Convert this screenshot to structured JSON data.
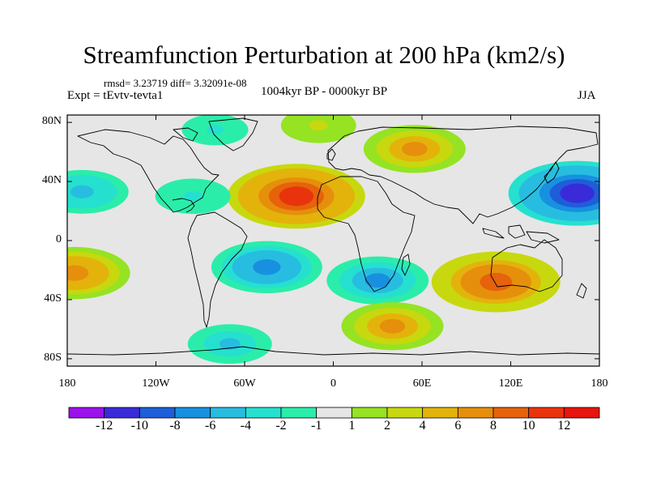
{
  "title": "Streamfunction Perturbation at 200 hPa (km2/s)",
  "stats_line": "rmsd= 3.23719 diff= 3.32091e-08",
  "experiment": "Expt = tEvtv-tevta1",
  "period": "1004kyr BP - 0000kyr BP",
  "season": "JJA",
  "map": {
    "projection": "cylindrical equidistant",
    "lon_range": [
      -180,
      180
    ],
    "lat_range": [
      -85,
      85
    ],
    "lat_ticks": [
      {
        "label": "80N",
        "lat": 80
      },
      {
        "label": "40N",
        "lat": 40
      },
      {
        "label": "0",
        "lat": 0
      },
      {
        "label": "40S",
        "lat": -40
      },
      {
        "label": "80S",
        "lat": -80
      }
    ],
    "lon_ticks": [
      {
        "label": "180",
        "lon": -180
      },
      {
        "label": "120W",
        "lon": -120
      },
      {
        "label": "60W",
        "lon": -60
      },
      {
        "label": "0",
        "lon": 0
      },
      {
        "label": "60E",
        "lon": 60
      },
      {
        "label": "120E",
        "lon": 120
      },
      {
        "label": "180",
        "lon": 180
      }
    ],
    "field_features": [
      {
        "name": "north-atlantic-high",
        "lon": -25,
        "lat": 30,
        "value": 10
      },
      {
        "name": "east-europe-high",
        "lon": 55,
        "lat": 62,
        "value": 6
      },
      {
        "name": "north-pacific-low",
        "lon": 165,
        "lat": 32,
        "value": -10
      },
      {
        "name": "east-pacific-low",
        "lon": -170,
        "lat": 33,
        "value": -5
      },
      {
        "name": "central-america-low",
        "lon": -95,
        "lat": 30,
        "value": -3
      },
      {
        "name": "arctic-canada-low",
        "lon": -80,
        "lat": 75,
        "value": -2
      },
      {
        "name": "arctic-high",
        "lon": -10,
        "lat": 78,
        "value": 3
      },
      {
        "name": "south-atlantic-low",
        "lon": -45,
        "lat": -18,
        "value": -7
      },
      {
        "name": "south-indian-low",
        "lon": 30,
        "lat": -27,
        "value": -6
      },
      {
        "name": "australia-high",
        "lon": 110,
        "lat": -28,
        "value": 9
      },
      {
        "name": "south-pacific-high",
        "lon": -175,
        "lat": -22,
        "value": 7
      },
      {
        "name": "southern-ocean-high",
        "lon": 40,
        "lat": -58,
        "value": 6
      },
      {
        "name": "southern-ocean-low",
        "lon": -70,
        "lat": -70,
        "value": -4
      }
    ]
  },
  "colorbar": {
    "labels": [
      "-12",
      "-10",
      "-8",
      "-6",
      "-4",
      "-2",
      "-1",
      "1",
      "2",
      "4",
      "6",
      "8",
      "10",
      "12"
    ],
    "colors": [
      "#9b12eb",
      "#3a2bd9",
      "#1e5ed9",
      "#1890e0",
      "#27bde0",
      "#26e0cf",
      "#2bedaa",
      "#e6e6e6",
      "#95e323",
      "#c8d80e",
      "#e3b30c",
      "#e68f0c",
      "#e6620b",
      "#e9330d",
      "#e8140d"
    ]
  }
}
